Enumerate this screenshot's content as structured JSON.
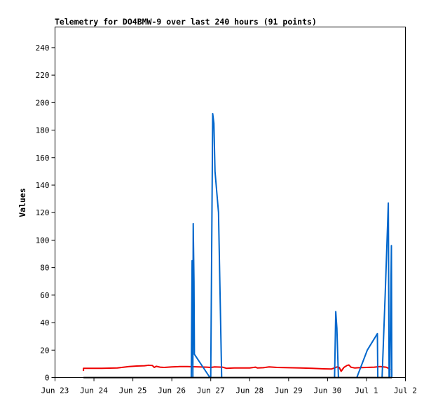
{
  "chart_data": {
    "type": "line",
    "title": "Telemetry for DO4BMW-9 over last 240 hours (91 points)",
    "xlabel": "",
    "ylabel": "Values",
    "x_unit": "days",
    "xlim": [
      0,
      9
    ],
    "ylim": [
      0,
      255
    ],
    "x_ticks": [
      {
        "x": 0,
        "label": "Jun 23"
      },
      {
        "x": 1,
        "label": "Jun 24"
      },
      {
        "x": 2,
        "label": "Jun 25"
      },
      {
        "x": 3,
        "label": "Jun 26"
      },
      {
        "x": 4,
        "label": "Jun 27"
      },
      {
        "x": 5,
        "label": "Jun 28"
      },
      {
        "x": 6,
        "label": "Jun 29"
      },
      {
        "x": 7,
        "label": "Jun 30"
      },
      {
        "x": 8,
        "label": "Jul 1"
      },
      {
        "x": 9,
        "label": "Jul 2"
      }
    ],
    "y_ticks": [
      0,
      20,
      40,
      60,
      80,
      100,
      120,
      140,
      160,
      180,
      200,
      220,
      240
    ],
    "grid": false,
    "series": [
      {
        "color": "#ee0000",
        "points": [
          [
            0.73,
            4.8
          ],
          [
            0.73,
            6.8
          ],
          [
            1.2,
            6.8
          ],
          [
            1.6,
            7.0
          ],
          [
            1.9,
            8.0
          ],
          [
            2.1,
            8.4
          ],
          [
            2.3,
            8.6
          ],
          [
            2.4,
            9.0
          ],
          [
            2.5,
            8.8
          ],
          [
            2.55,
            7.4
          ],
          [
            2.6,
            8.2
          ],
          [
            2.7,
            7.6
          ],
          [
            2.8,
            7.4
          ],
          [
            2.9,
            7.6
          ],
          [
            3.0,
            7.8
          ],
          [
            3.2,
            8.0
          ],
          [
            3.4,
            8.0
          ],
          [
            3.7,
            7.8
          ],
          [
            3.9,
            7.6
          ],
          [
            4.0,
            7.4
          ],
          [
            4.1,
            7.8
          ],
          [
            4.3,
            7.6
          ],
          [
            4.4,
            6.8
          ],
          [
            4.6,
            7.0
          ],
          [
            4.8,
            7.0
          ],
          [
            5.0,
            7.0
          ],
          [
            5.15,
            7.6
          ],
          [
            5.2,
            7.0
          ],
          [
            5.35,
            7.2
          ],
          [
            5.5,
            7.8
          ],
          [
            5.7,
            7.4
          ],
          [
            6.0,
            7.2
          ],
          [
            6.3,
            7.0
          ],
          [
            6.6,
            6.8
          ],
          [
            6.9,
            6.4
          ],
          [
            7.1,
            6.2
          ],
          [
            7.25,
            7.8
          ],
          [
            7.3,
            7.4
          ],
          [
            7.35,
            4.6
          ],
          [
            7.42,
            7.4
          ],
          [
            7.5,
            8.8
          ],
          [
            7.55,
            9.2
          ],
          [
            7.6,
            7.6
          ],
          [
            7.7,
            7.0
          ],
          [
            7.8,
            7.2
          ],
          [
            8.0,
            7.4
          ],
          [
            8.2,
            7.6
          ],
          [
            8.35,
            8.0
          ],
          [
            8.5,
            7.6
          ],
          [
            8.58,
            6.6
          ],
          [
            8.62,
            5.8
          ]
        ]
      },
      {
        "color": "#0066cc",
        "points": [
          [
            3.5,
            0
          ],
          [
            3.52,
            85
          ],
          [
            3.54,
            0
          ],
          [
            3.55,
            112
          ],
          [
            3.57,
            70
          ],
          [
            3.58,
            17
          ],
          [
            3.98,
            0
          ],
          [
            4.0,
            0
          ],
          [
            4.05,
            192
          ],
          [
            4.08,
            185
          ],
          [
            4.11,
            150
          ],
          [
            4.2,
            120
          ],
          [
            4.28,
            0
          ],
          [
            4.3,
            0
          ],
          [
            7.18,
            0
          ],
          [
            7.21,
            48
          ],
          [
            7.24,
            36
          ],
          [
            7.28,
            0
          ],
          [
            7.5,
            0
          ],
          [
            7.75,
            0
          ],
          [
            8.02,
            20
          ],
          [
            8.28,
            32
          ],
          [
            8.29,
            0
          ],
          [
            8.4,
            0
          ],
          [
            8.48,
            60
          ],
          [
            8.56,
            127
          ],
          [
            8.58,
            0
          ],
          [
            8.6,
            0
          ],
          [
            8.64,
            96
          ],
          [
            8.65,
            0
          ]
        ]
      },
      {
        "color": "#000000",
        "points": [
          [
            0.73,
            0
          ],
          [
            8.65,
            0
          ]
        ]
      }
    ]
  }
}
